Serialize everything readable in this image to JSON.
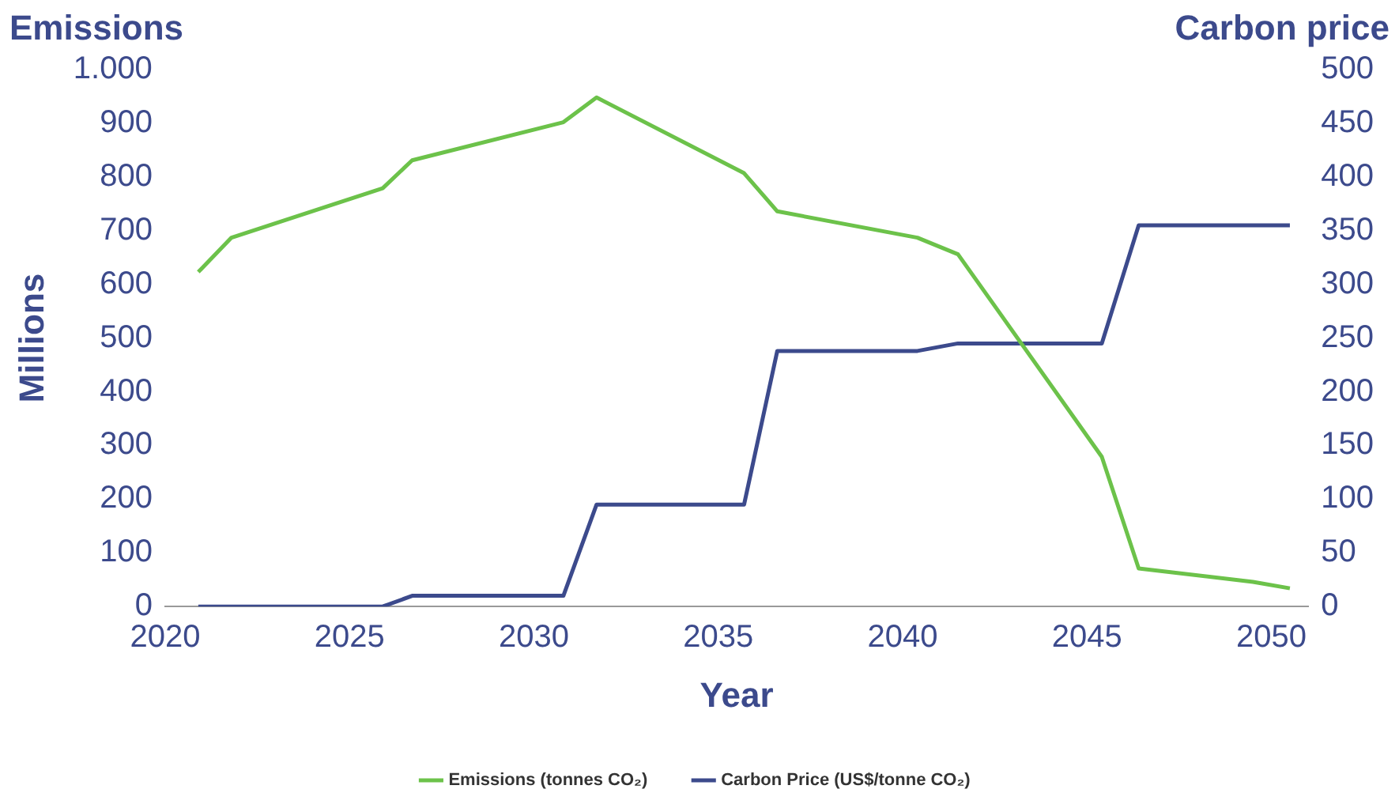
{
  "chart_data": {
    "type": "line",
    "title": "Emissions",
    "xlabel": "Year",
    "ylabel": "Millions",
    "y2label": "Carbon price",
    "xlim": [
      2020,
      2051
    ],
    "xticks": [
      2020,
      2025,
      2030,
      2035,
      2040,
      2045,
      2050
    ],
    "ylim": [
      0,
      1000
    ],
    "yticks": [
      0,
      100,
      200,
      300,
      400,
      500,
      600,
      700,
      800,
      900,
      {
        "value": 1000,
        "label": "1.000"
      }
    ],
    "y2lim": [
      0,
      500
    ],
    "y2ticks": [
      0,
      50,
      100,
      150,
      200,
      250,
      300,
      350,
      400,
      450,
      500
    ],
    "grid": false,
    "legend": "bottom",
    "marker": "none",
    "line_style": "solid",
    "series": [
      {
        "name": "Emissions (tonnes CO₂)",
        "color": "#6cc24a",
        "x": [
          2020.9,
          2021.8,
          2025.9,
          2026.7,
          2030.8,
          2031.7,
          2035.7,
          2036.6,
          2040.4,
          2041.5,
          2045.4,
          2046.4,
          2049.5,
          2050.5
        ],
        "values": [
          623,
          687,
          779,
          831,
          902,
          948,
          807,
          736,
          687,
          656,
          279,
          71,
          46,
          34
        ]
      },
      {
        "name": "Carbon Price (US$/tonne CO₂)",
        "color": "#3c4a8c",
        "axis": "y2",
        "x": [
          2020.9,
          2025.9,
          2026.7,
          2030.8,
          2031.7,
          2035.7,
          2036.6,
          2040.4,
          2041.5,
          2045.4,
          2046.4,
          2050.5
        ],
        "values": [
          0,
          0,
          10,
          10,
          95,
          95,
          238,
          238,
          245,
          245,
          355,
          355
        ]
      }
    ]
  }
}
